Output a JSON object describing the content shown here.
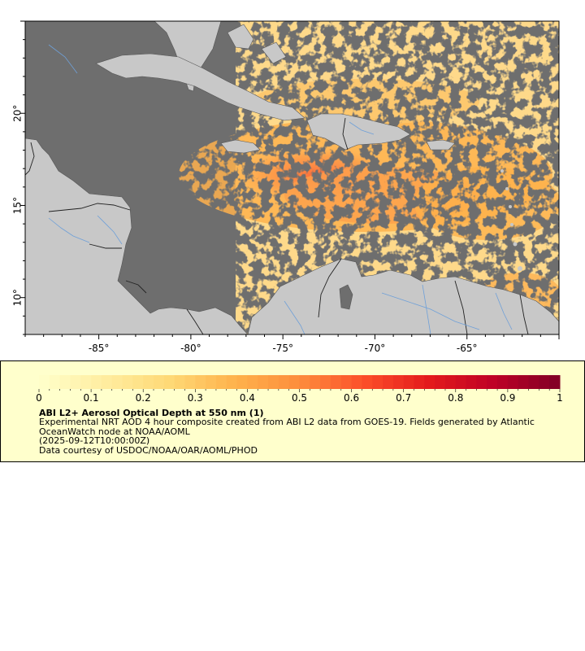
{
  "map": {
    "lon_range": [
      -89,
      -60
    ],
    "lat_range": [
      8,
      25
    ],
    "x_ticks": [
      {
        "value": -85,
        "label": "-85°"
      },
      {
        "value": -80,
        "label": "-80°"
      },
      {
        "value": -75,
        "label": "-75°"
      },
      {
        "value": -70,
        "label": "-70°"
      },
      {
        "value": -65,
        "label": "-65°"
      }
    ],
    "y_ticks": [
      {
        "value": 20,
        "label": "20°"
      },
      {
        "value": 15,
        "label": "15°"
      },
      {
        "value": 10,
        "label": "10°"
      }
    ],
    "colors": {
      "ocean_no_data": "#6e6e6e",
      "land": "#c8c8c8",
      "rivers": "#6fa0d8",
      "borders": "#333333"
    }
  },
  "colorbar": {
    "min": 0,
    "max": 1,
    "tick_labels": [
      "0",
      "0.1",
      "0.2",
      "0.3",
      "0.4",
      "0.5",
      "0.6",
      "0.7",
      "0.8",
      "0.9",
      "1"
    ],
    "colors": [
      "#ffffcc",
      "#ffeda0",
      "#fed976",
      "#feb24c",
      "#fd8d3c",
      "#fc4e2a",
      "#e31a1c",
      "#bd0026",
      "#800026"
    ]
  },
  "legend": {
    "title": "ABI L2+ Aerosol Optical Depth at 550 nm (1)",
    "description": "Experimental NRT AOD 4 hour composite created from ABI L2 data from GOES-19. Fields generated by Atlantic OceanWatch node at NOAA/AOML",
    "time": "(2025-09-12T10:00:00Z)",
    "credit": "Data courtesy of USDOC/NOAA/OAR/AOML/PHOD"
  }
}
